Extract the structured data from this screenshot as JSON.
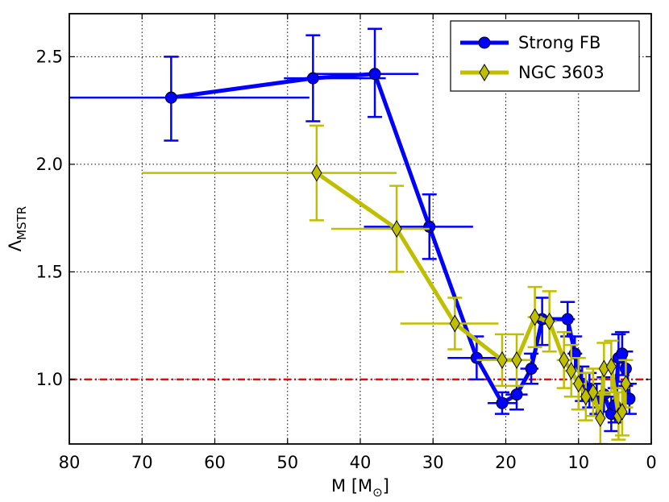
{
  "chart_data": {
    "type": "line",
    "title": "",
    "xlabel": "M [M",
    "xlabel_sub": "⊙",
    "xlabel_end": "]",
    "ylabel": "Λ",
    "ylabel_sub": "MSTR",
    "xlim": [
      80,
      0
    ],
    "ylim": [
      0.7,
      2.7
    ],
    "x_ticks": [
      80,
      70,
      60,
      50,
      40,
      30,
      20,
      10,
      0
    ],
    "x_tick_labels": [
      "80",
      "70",
      "60",
      "50",
      "40",
      "30",
      "20",
      "10",
      "0"
    ],
    "y_ticks": [
      1.0,
      1.5,
      2.0,
      2.5
    ],
    "y_tick_labels": [
      "1.0",
      "1.5",
      "2.0",
      "2.5"
    ],
    "grid": true,
    "legend_position": "top-right",
    "reference_line": {
      "y": 1.0,
      "color": "#ff0000",
      "style": "dash-dot"
    },
    "series": [
      {
        "name": "Strong FB",
        "color": "#0000ff",
        "marker": "circle",
        "points": [
          {
            "x": 66.0,
            "y": 2.31,
            "xlo": 80.0,
            "xhi": 47.0,
            "ylo": 2.11,
            "yhi": 2.5
          },
          {
            "x": 46.5,
            "y": 2.4,
            "xlo": 50.5,
            "xhi": 36.5,
            "ylo": 2.2,
            "yhi": 2.6
          },
          {
            "x": 38.0,
            "y": 2.42,
            "xlo": 46.5,
            "xhi": 32.0,
            "ylo": 2.22,
            "yhi": 2.63
          },
          {
            "x": 30.5,
            "y": 1.71,
            "xlo": 39.5,
            "xhi": 24.5,
            "ylo": 1.56,
            "yhi": 1.86
          },
          {
            "x": 24.0,
            "y": 1.1,
            "xlo": 28.0,
            "xhi": 20.5,
            "ylo": 1.0,
            "yhi": 1.2
          },
          {
            "x": 20.5,
            "y": 0.89,
            "xlo": 22.5,
            "xhi": 18.5,
            "ylo": 0.84,
            "yhi": 0.94
          },
          {
            "x": 18.5,
            "y": 0.93,
            "xlo": 20.0,
            "xhi": 17.0,
            "ylo": 0.86,
            "yhi": 1.0
          },
          {
            "x": 16.5,
            "y": 1.05,
            "xlo": 18.0,
            "xhi": 15.5,
            "ylo": 0.98,
            "yhi": 1.12
          },
          {
            "x": 15.0,
            "y": 1.28,
            "xlo": 16.0,
            "xhi": 13.5,
            "ylo": 1.16,
            "yhi": 1.38
          },
          {
            "x": 11.5,
            "y": 1.28,
            "xlo": 12.5,
            "xhi": 10.5,
            "ylo": 1.2,
            "yhi": 1.36
          },
          {
            "x": 10.5,
            "y": 1.12,
            "xlo": 11.5,
            "xhi": 9.5,
            "ylo": 1.04,
            "yhi": 1.2
          },
          {
            "x": 9.5,
            "y": 0.98,
            "xlo": 10.5,
            "xhi": 8.5,
            "ylo": 0.9,
            "yhi": 1.06
          },
          {
            "x": 8.5,
            "y": 0.95,
            "xlo": 9.2,
            "xhi": 7.8,
            "ylo": 0.87,
            "yhi": 1.03
          },
          {
            "x": 7.5,
            "y": 0.91,
            "xlo": 8.2,
            "xhi": 6.8,
            "ylo": 0.84,
            "yhi": 0.98
          },
          {
            "x": 6.5,
            "y": 0.93,
            "xlo": 7.2,
            "xhi": 5.8,
            "ylo": 0.85,
            "yhi": 1.01
          },
          {
            "x": 5.5,
            "y": 0.84,
            "xlo": 6.2,
            "xhi": 4.8,
            "ylo": 0.76,
            "yhi": 0.92
          },
          {
            "x": 5.0,
            "y": 0.88,
            "xlo": 5.7,
            "xhi": 4.4,
            "ylo": 0.8,
            "yhi": 0.96
          },
          {
            "x": 4.5,
            "y": 1.1,
            "xlo": 5.0,
            "xhi": 4.0,
            "ylo": 0.99,
            "yhi": 1.21
          },
          {
            "x": 4.0,
            "y": 1.12,
            "xlo": 4.6,
            "xhi": 3.5,
            "ylo": 1.02,
            "yhi": 1.22
          },
          {
            "x": 3.5,
            "y": 1.05,
            "xlo": 4.0,
            "xhi": 3.0,
            "ylo": 0.97,
            "yhi": 1.13
          },
          {
            "x": 3.0,
            "y": 0.91,
            "xlo": 3.5,
            "xhi": 2.5,
            "ylo": 0.84,
            "yhi": 0.98
          }
        ]
      },
      {
        "name": "NGC 3603",
        "color": "#bfbf00",
        "marker": "diamond",
        "points": [
          {
            "x": 46.0,
            "y": 1.96,
            "xlo": 70.0,
            "xhi": 35.0,
            "ylo": 1.74,
            "yhi": 2.18
          },
          {
            "x": 35.0,
            "y": 1.7,
            "xlo": 44.0,
            "xhi": 30.5,
            "ylo": 1.5,
            "yhi": 1.9
          },
          {
            "x": 27.0,
            "y": 1.26,
            "xlo": 34.5,
            "xhi": 21.0,
            "ylo": 1.14,
            "yhi": 1.38
          },
          {
            "x": 20.5,
            "y": 1.09,
            "xlo": 24.0,
            "xhi": 16.5,
            "ylo": 0.97,
            "yhi": 1.21
          },
          {
            "x": 18.5,
            "y": 1.09,
            "xlo": 20.5,
            "xhi": 17.0,
            "ylo": 0.97,
            "yhi": 1.21
          },
          {
            "x": 16.0,
            "y": 1.29,
            "xlo": 17.0,
            "xhi": 15.0,
            "ylo": 1.15,
            "yhi": 1.43
          },
          {
            "x": 14.0,
            "y": 1.27,
            "xlo": 15.0,
            "xhi": 13.0,
            "ylo": 1.13,
            "yhi": 1.41
          },
          {
            "x": 12.0,
            "y": 1.09,
            "xlo": 13.0,
            "xhi": 11.0,
            "ylo": 0.96,
            "yhi": 1.22
          },
          {
            "x": 11.0,
            "y": 1.04,
            "xlo": 12.0,
            "xhi": 10.0,
            "ylo": 0.92,
            "yhi": 1.16
          },
          {
            "x": 10.0,
            "y": 0.98,
            "xlo": 11.0,
            "xhi": 9.0,
            "ylo": 0.86,
            "yhi": 1.1
          },
          {
            "x": 9.0,
            "y": 0.92,
            "xlo": 10.0,
            "xhi": 8.2,
            "ylo": 0.81,
            "yhi": 1.03
          },
          {
            "x": 8.0,
            "y": 0.94,
            "xlo": 8.8,
            "xhi": 7.2,
            "ylo": 0.83,
            "yhi": 1.05
          },
          {
            "x": 7.0,
            "y": 0.82,
            "xlo": 7.7,
            "xhi": 6.3,
            "ylo": 0.7,
            "yhi": 0.94
          },
          {
            "x": 6.5,
            "y": 1.05,
            "xlo": 7.2,
            "xhi": 5.8,
            "ylo": 0.93,
            "yhi": 1.17
          },
          {
            "x": 5.5,
            "y": 1.06,
            "xlo": 6.2,
            "xhi": 4.8,
            "ylo": 0.94,
            "yhi": 1.18
          },
          {
            "x": 4.5,
            "y": 0.83,
            "xlo": 5.1,
            "xhi": 3.9,
            "ylo": 0.72,
            "yhi": 0.94
          },
          {
            "x": 4.0,
            "y": 0.85,
            "xlo": 4.6,
            "xhi": 3.4,
            "ylo": 0.74,
            "yhi": 0.96
          },
          {
            "x": 3.5,
            "y": 0.98,
            "xlo": 4.0,
            "xhi": 3.0,
            "ylo": 0.87,
            "yhi": 1.09
          }
        ]
      }
    ]
  }
}
